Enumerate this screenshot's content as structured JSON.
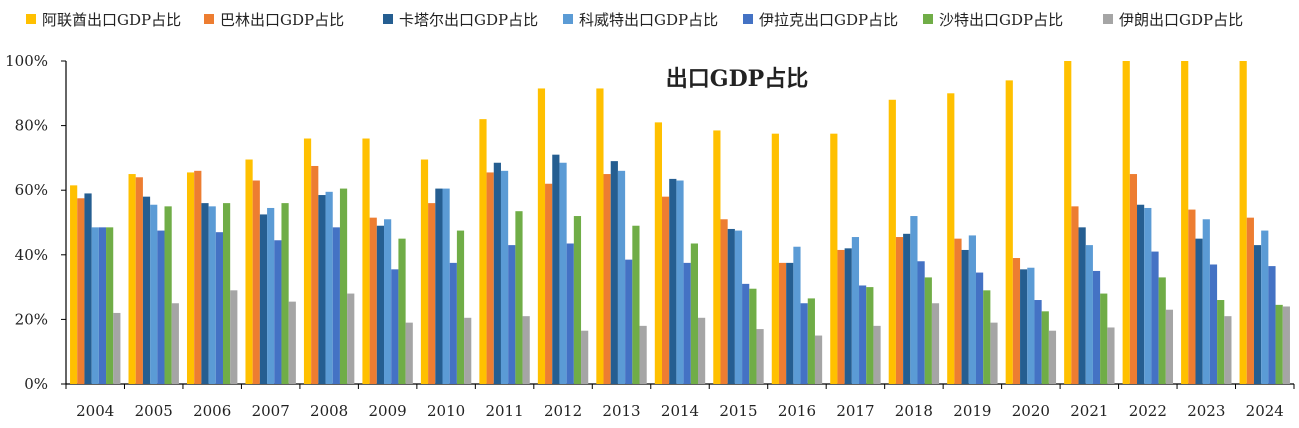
{
  "chart_data": {
    "type": "bar",
    "title": "出口GDP占比",
    "xlabel": "",
    "ylabel": "",
    "ylim": [
      0,
      100
    ],
    "yticks": [
      "0%",
      "20%",
      "40%",
      "60%",
      "80%",
      "100%"
    ],
    "legend_position": "top",
    "grid": false,
    "categories": [
      "2004",
      "2005",
      "2006",
      "2007",
      "2008",
      "2009",
      "2010",
      "2011",
      "2012",
      "2013",
      "2014",
      "2015",
      "2016",
      "2017",
      "2018",
      "2019",
      "2020",
      "2021",
      "2022",
      "2023",
      "2024"
    ],
    "series": [
      {
        "name": "阿联酋出口GDP占比",
        "color": "#FFC000",
        "values": [
          61.5,
          65,
          65.5,
          69.5,
          76,
          76,
          69.5,
          82,
          91.5,
          91.5,
          81,
          78.5,
          77.5,
          77.5,
          88,
          90,
          94,
          100,
          100,
          100,
          100
        ]
      },
      {
        "name": "巴林出口GDP占比",
        "color": "#ED7D31",
        "values": [
          57.5,
          64,
          66,
          63,
          67.5,
          51.5,
          56,
          65.5,
          62,
          65,
          58,
          51,
          37.5,
          41.5,
          45.5,
          45,
          39,
          55,
          65,
          54,
          51.5
        ]
      },
      {
        "name": "卡塔尔出口GDP占比",
        "color": "#255E91",
        "values": [
          59,
          58,
          56,
          52.5,
          58.5,
          49,
          60.5,
          68.5,
          71,
          69,
          63.5,
          48,
          37.5,
          42,
          46.5,
          41.5,
          35.5,
          48.5,
          55.5,
          45,
          43
        ]
      },
      {
        "name": "科威特出口GDP占比",
        "color": "#5B9BD5",
        "values": [
          48.5,
          55.5,
          55,
          54.5,
          59.5,
          51,
          60.5,
          66,
          68.5,
          66,
          63,
          47.5,
          42.5,
          45.5,
          52,
          46,
          36,
          43,
          54.5,
          51,
          47.5
        ]
      },
      {
        "name": "伊拉克出口GDP占比",
        "color": "#4472C4",
        "values": [
          48.5,
          47.5,
          47,
          44.5,
          48.5,
          35.5,
          37.5,
          43,
          43.5,
          38.5,
          37.5,
          31,
          25,
          30.5,
          38,
          34.5,
          26,
          35,
          41,
          37,
          36.5
        ]
      },
      {
        "name": "沙特出口GDP占比",
        "color": "#70AD47",
        "values": [
          48.5,
          55,
          56,
          56,
          60.5,
          45,
          47.5,
          53.5,
          52,
          49,
          43.5,
          29.5,
          26.5,
          30,
          33,
          29,
          22.5,
          28,
          33,
          26,
          24.5
        ]
      },
      {
        "name": "伊朗出口GDP占比",
        "color": "#A5A5A5",
        "values": [
          22,
          25,
          29,
          25.5,
          28,
          19,
          20.5,
          21,
          16.5,
          18,
          20.5,
          17,
          15,
          18,
          25,
          19,
          16.5,
          17.5,
          23,
          21,
          24
        ]
      }
    ]
  }
}
